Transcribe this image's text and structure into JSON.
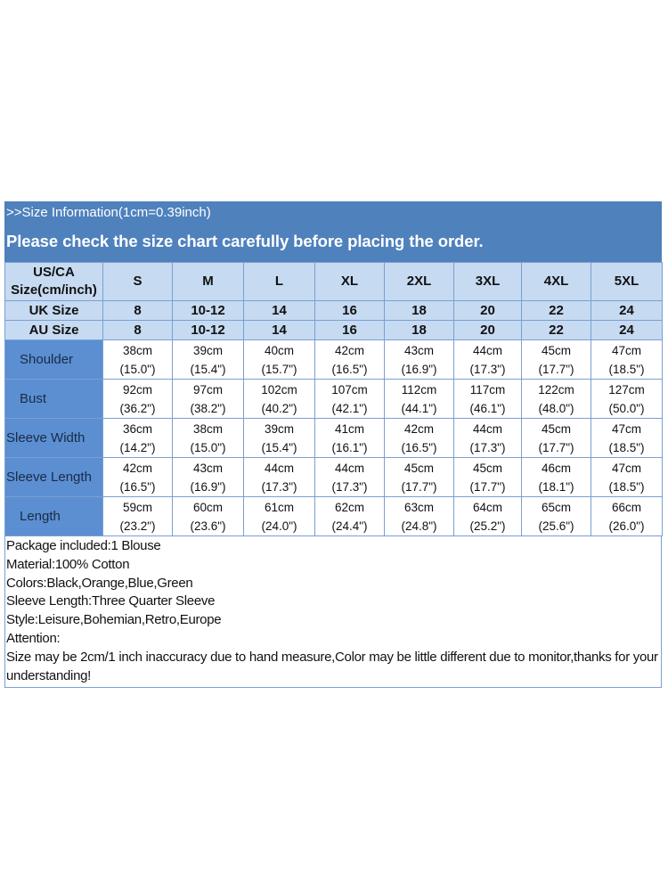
{
  "header": {
    "subtitle": ">>Size Information(1cm=0.39inch)",
    "title": "Please check the size chart carefully before placing the order."
  },
  "colors": {
    "band": "#4f81bd",
    "light_cell": "#c6daf1",
    "label_cell": "#5b8fd2",
    "border": "#7b9fd3"
  },
  "table": {
    "size_row": {
      "label": "US/CA Size(cm/inch)",
      "values": [
        "S",
        "M",
        "L",
        "XL",
        "2XL",
        "3XL",
        "4XL",
        "5XL"
      ]
    },
    "uk_row": {
      "label": "UK Size",
      "values": [
        "8",
        "10-12",
        "14",
        "16",
        "18",
        "20",
        "22",
        "24"
      ]
    },
    "au_row": {
      "label": "AU Size",
      "values": [
        "8",
        "10-12",
        "14",
        "16",
        "18",
        "20",
        "22",
        "24"
      ]
    },
    "rows": [
      {
        "label": "Shoulder",
        "cm": [
          "38cm",
          "39cm",
          "40cm",
          "42cm",
          "43cm",
          "44cm",
          "45cm",
          "47cm"
        ],
        "inch": [
          "(15.0\")",
          "(15.4\")",
          "(15.7\")",
          "(16.5\")",
          "(16.9\")",
          "(17.3\")",
          "(17.7\")",
          "(18.5\")"
        ]
      },
      {
        "label": "Bust",
        "cm": [
          "92cm",
          "97cm",
          "102cm",
          "107cm",
          "112cm",
          "117cm",
          "122cm",
          "127cm"
        ],
        "inch": [
          "(36.2\")",
          "(38.2\")",
          "(40.2\")",
          "(42.1\")",
          "(44.1\")",
          "(46.1\")",
          "(48.0\")",
          "(50.0\")"
        ]
      },
      {
        "label": "Sleeve Width",
        "cm": [
          "36cm",
          "38cm",
          "39cm",
          "41cm",
          "42cm",
          "44cm",
          "45cm",
          "47cm"
        ],
        "inch": [
          "(14.2\")",
          "(15.0\")",
          "(15.4\")",
          "(16.1\")",
          "(16.5\")",
          "(17.3\")",
          "(17.7\")",
          "(18.5\")"
        ]
      },
      {
        "label": "Sleeve Length",
        "cm": [
          "42cm",
          "43cm",
          "44cm",
          "44cm",
          "45cm",
          "45cm",
          "46cm",
          "47cm"
        ],
        "inch": [
          "(16.5\")",
          "(16.9\")",
          "(17.3\")",
          "(17.3\")",
          "(17.7\")",
          "(17.7\")",
          "(18.1\")",
          "(18.5\")"
        ]
      },
      {
        "label": "Length",
        "cm": [
          "59cm",
          "60cm",
          "61cm",
          "62cm",
          "63cm",
          "64cm",
          "65cm",
          "66cm"
        ],
        "inch": [
          "(23.2\")",
          "(23.6\")",
          "(24.0\")",
          "(24.4\")",
          "(24.8\")",
          "(25.2\")",
          "(25.6\")",
          "(26.0\")"
        ]
      }
    ]
  },
  "notes": [
    "Package included:1 Blouse",
    "Material:100% Cotton",
    "Colors:Black,Orange,Blue,Green",
    "Sleeve Length:Three Quarter Sleeve",
    "Style:Leisure,Bohemian,Retro,Europe",
    "Attention:",
    "Size may be 2cm/1 inch inaccuracy due to hand measure,Color may be little different due to monitor,thanks for your understanding!"
  ]
}
